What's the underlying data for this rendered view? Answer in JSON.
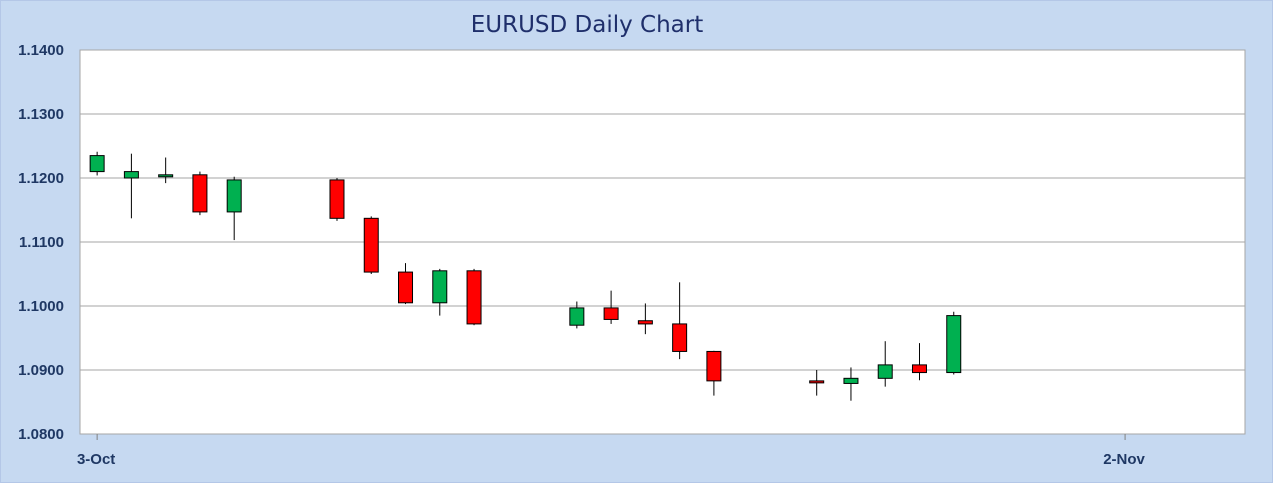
{
  "chart_data": {
    "type": "candlestick",
    "title": "EURUSD Daily Chart",
    "xlabel": "",
    "ylabel": "",
    "ylim": [
      1.08,
      1.14
    ],
    "y_ticks": [
      "1.1400",
      "1.1300",
      "1.1200",
      "1.1100",
      "1.1000",
      "1.0900",
      "1.0800"
    ],
    "x_ticks": [
      {
        "label": "3-Oct",
        "day": 0
      },
      {
        "label": "2-Nov",
        "day": 30
      }
    ],
    "xlim_days": [
      -0.5,
      33.5
    ],
    "grid": true,
    "colors": {
      "up": "#00b050",
      "down": "#ff0000",
      "plot_bg": "#ffffff",
      "grid": "#a6a6a6",
      "frame": "#b4c7e7"
    },
    "candles": [
      {
        "day": 0,
        "open": 1.121,
        "high": 1.1241,
        "low": 1.1204,
        "close": 1.1235
      },
      {
        "day": 1,
        "open": 1.12,
        "high": 1.1238,
        "low": 1.1137,
        "close": 1.121
      },
      {
        "day": 2,
        "open": 1.1202,
        "high": 1.1232,
        "low": 1.1192,
        "close": 1.1205
      },
      {
        "day": 3,
        "open": 1.1205,
        "high": 1.121,
        "low": 1.1142,
        "close": 1.1147
      },
      {
        "day": 4,
        "open": 1.1147,
        "high": 1.1202,
        "low": 1.1103,
        "close": 1.1197
      },
      {
        "day": 7,
        "open": 1.1197,
        "high": 1.12,
        "low": 1.1133,
        "close": 1.1137
      },
      {
        "day": 8,
        "open": 1.1137,
        "high": 1.114,
        "low": 1.105,
        "close": 1.1053
      },
      {
        "day": 9,
        "open": 1.1053,
        "high": 1.1067,
        "low": 1.1003,
        "close": 1.1005
      },
      {
        "day": 10,
        "open": 1.1005,
        "high": 1.1058,
        "low": 1.0985,
        "close": 1.1055
      },
      {
        "day": 11,
        "open": 1.1055,
        "high": 1.1058,
        "low": 1.097,
        "close": 1.0972
      },
      {
        "day": 14,
        "open": 1.097,
        "high": 1.1007,
        "low": 1.0965,
        "close": 1.0997
      },
      {
        "day": 15,
        "open": 1.0997,
        "high": 1.1024,
        "low": 1.0972,
        "close": 1.0979
      },
      {
        "day": 16,
        "open": 1.0977,
        "high": 1.1004,
        "low": 1.0956,
        "close": 1.0972
      },
      {
        "day": 17,
        "open": 1.0972,
        "high": 1.1037,
        "low": 1.0917,
        "close": 1.0929
      },
      {
        "day": 18,
        "open": 1.0929,
        "high": 1.093,
        "low": 1.086,
        "close": 1.0883
      },
      {
        "day": 21,
        "open": 1.0883,
        "high": 1.09,
        "low": 1.086,
        "close": 1.088
      },
      {
        "day": 22,
        "open": 1.0879,
        "high": 1.0904,
        "low": 1.0852,
        "close": 1.0887
      },
      {
        "day": 23,
        "open": 1.0887,
        "high": 1.0945,
        "low": 1.0874,
        "close": 1.0908
      },
      {
        "day": 24,
        "open": 1.0908,
        "high": 1.0942,
        "low": 1.0884,
        "close": 1.0896
      },
      {
        "day": 25,
        "open": 1.0896,
        "high": 1.0991,
        "low": 1.0893,
        "close": 1.0985
      }
    ]
  }
}
